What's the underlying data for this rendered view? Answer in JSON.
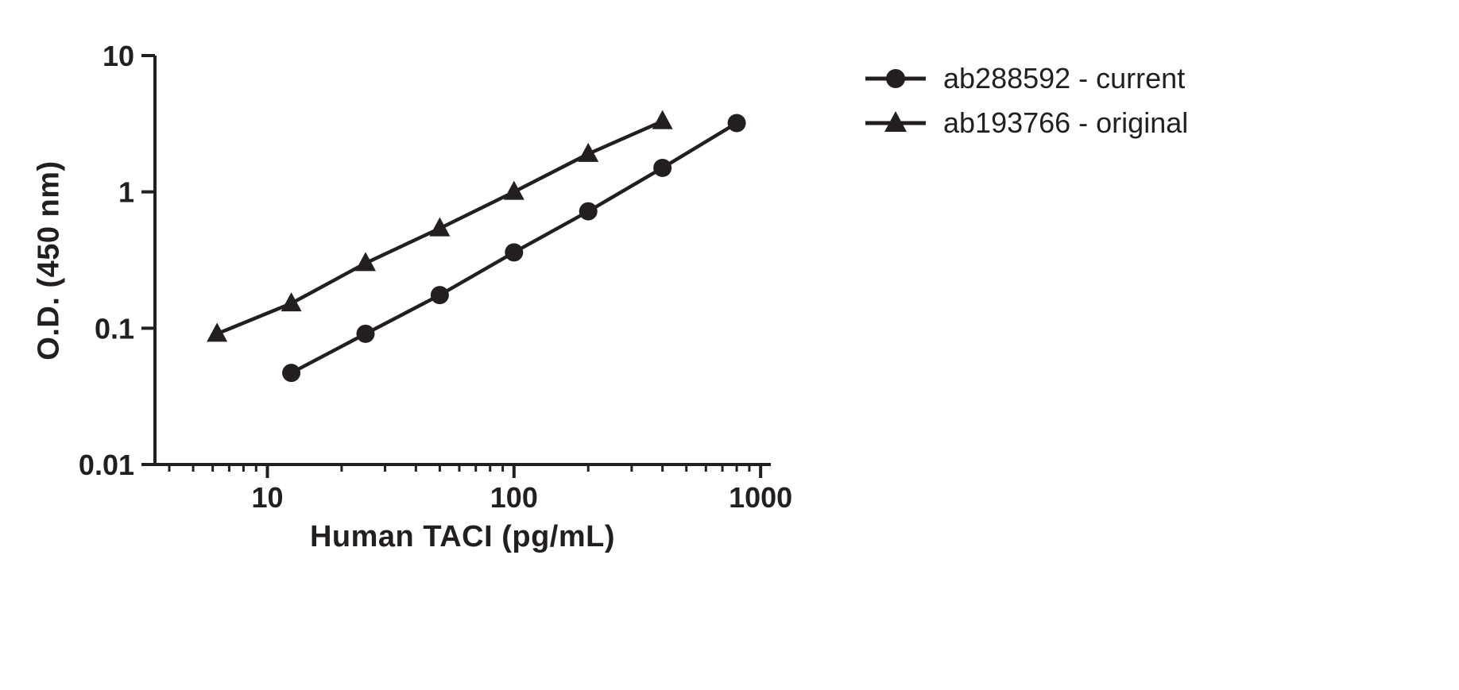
{
  "chart_data": {
    "type": "line",
    "title": "",
    "xlabel": "Human TACI (pg/mL)",
    "ylabel": "O.D. (450 nm)",
    "x_scale": "log",
    "y_scale": "log",
    "xlim": [
      3.5,
      1100
    ],
    "ylim": [
      0.01,
      10
    ],
    "grid": false,
    "legend_position": "top-right",
    "x_ticks": [
      {
        "value": 10,
        "label": "10"
      },
      {
        "value": 100,
        "label": "100"
      },
      {
        "value": 1000,
        "label": "1000"
      }
    ],
    "y_ticks": [
      {
        "value": 0.01,
        "label": "0.01"
      },
      {
        "value": 0.1,
        "label": "0.1"
      },
      {
        "value": 1,
        "label": "1"
      },
      {
        "value": 10,
        "label": "10"
      }
    ],
    "series": [
      {
        "name": "ab288592 - current",
        "marker": "circle",
        "color": "#231f20",
        "points": [
          [
            12.5,
            0.047
          ],
          [
            25,
            0.091
          ],
          [
            50,
            0.175
          ],
          [
            100,
            0.36
          ],
          [
            200,
            0.72
          ],
          [
            400,
            1.5
          ],
          [
            800,
            3.2
          ]
        ]
      },
      {
        "name": "ab193766 - original",
        "marker": "triangle",
        "color": "#231f20",
        "points": [
          [
            6.25,
            0.091
          ],
          [
            12.5,
            0.152
          ],
          [
            25,
            0.3
          ],
          [
            50,
            0.54
          ],
          [
            100,
            1.0
          ],
          [
            200,
            1.9
          ],
          [
            400,
            3.3
          ]
        ]
      }
    ]
  },
  "colors": {
    "ink": "#231f20",
    "background": "#ffffff"
  }
}
